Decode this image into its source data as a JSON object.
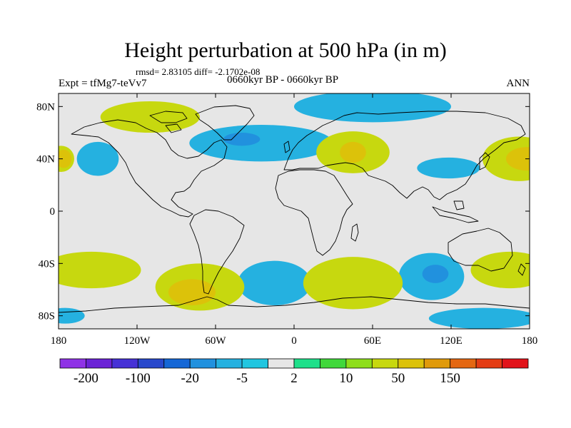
{
  "title": "Height perturbation at 500 hPa (in m)",
  "stats": "rmsd= 2.83105 diff= -2.1702e-08",
  "experiment": "Expt = tfMg7-teVv7",
  "period": "0660kyr BP - 0660kyr BP",
  "season": "ANN",
  "map": {
    "lon_range": [
      -180,
      180
    ],
    "lat_range": [
      -90,
      90
    ],
    "background_color": "#e6e6e6",
    "lat_ticks": [
      {
        "value": 80,
        "label": "80N"
      },
      {
        "value": 40,
        "label": "40N"
      },
      {
        "value": 0,
        "label": "0"
      },
      {
        "value": -40,
        "label": "40S"
      },
      {
        "value": -80,
        "label": "80S"
      }
    ],
    "lon_ticks": [
      {
        "value": -180,
        "label": "180"
      },
      {
        "value": -120,
        "label": "120W"
      },
      {
        "value": -60,
        "label": "60W"
      },
      {
        "value": 0,
        "label": "0"
      },
      {
        "value": 60,
        "label": "60E"
      },
      {
        "value": 120,
        "label": "120E"
      },
      {
        "value": 180,
        "label": "180"
      }
    ],
    "field_anomalies": [
      {
        "lon": -110,
        "lat": 72,
        "rlon": 38,
        "rlat": 12,
        "level": 4
      },
      {
        "lon": -25,
        "lat": 52,
        "rlon": 55,
        "rlat": 14,
        "level": -2
      },
      {
        "lon": -40,
        "lat": 55,
        "rlon": 14,
        "rlat": 5,
        "level": -3
      },
      {
        "lon": -150,
        "lat": 40,
        "rlon": 16,
        "rlat": 13,
        "level": -2
      },
      {
        "lon": 60,
        "lat": 80,
        "rlon": 60,
        "rlat": 12,
        "level": -2
      },
      {
        "lon": 45,
        "lat": 45,
        "rlon": 28,
        "rlat": 16,
        "level": 4
      },
      {
        "lon": 45,
        "lat": 45,
        "rlon": 10,
        "rlat": 8,
        "level": 5
      },
      {
        "lon": 118,
        "lat": 33,
        "rlon": 24,
        "rlat": 8,
        "level": -2
      },
      {
        "lon": 172,
        "lat": 40,
        "rlon": 28,
        "rlat": 17,
        "level": 4
      },
      {
        "lon": 178,
        "lat": 40,
        "rlon": 16,
        "rlat": 9,
        "level": 5
      },
      {
        "lon": -178,
        "lat": 40,
        "rlon": 10,
        "rlat": 10,
        "level": 4
      },
      {
        "lon": -176,
        "lat": 40,
        "rlon": 6,
        "rlat": 7,
        "level": 5
      },
      {
        "lon": -155,
        "lat": -45,
        "rlon": 38,
        "rlat": 14,
        "level": 4
      },
      {
        "lon": -72,
        "lat": -58,
        "rlon": 34,
        "rlat": 18,
        "level": 4
      },
      {
        "lon": -78,
        "lat": -62,
        "rlon": 18,
        "rlat": 10,
        "level": 5
      },
      {
        "lon": -15,
        "lat": -55,
        "rlon": 28,
        "rlat": 17,
        "level": -2
      },
      {
        "lon": 45,
        "lat": -55,
        "rlon": 38,
        "rlat": 20,
        "level": 4
      },
      {
        "lon": 105,
        "lat": -50,
        "rlon": 25,
        "rlat": 18,
        "level": -2
      },
      {
        "lon": 108,
        "lat": -48,
        "rlon": 10,
        "rlat": 7,
        "level": -3
      },
      {
        "lon": 165,
        "lat": -45,
        "rlon": 30,
        "rlat": 14,
        "level": 4
      },
      {
        "lon": 145,
        "lat": -82,
        "rlon": 42,
        "rlat": 8,
        "level": -2
      },
      {
        "lon": -175,
        "lat": -80,
        "rlon": 15,
        "rlat": 6,
        "level": -2
      }
    ]
  },
  "colorbar": {
    "colors": [
      "#8f32e6",
      "#6b22d6",
      "#4631d6",
      "#2848cc",
      "#1567d6",
      "#2191de",
      "#25b1e0",
      "#21c6e0",
      "#e6e6e6",
      "#1ee08a",
      "#40d83b",
      "#8ede1a",
      "#c7d80f",
      "#dcc20a",
      "#e09a0a",
      "#e46712",
      "#e43c14",
      "#e2131a"
    ],
    "labels": [
      {
        "text": "-200",
        "after_box": 1
      },
      {
        "text": "-100",
        "after_box": 3
      },
      {
        "text": "-20",
        "after_box": 5
      },
      {
        "text": "-5",
        "after_box": 7
      },
      {
        "text": "2",
        "after_box": 9
      },
      {
        "text": "10",
        "after_box": 11
      },
      {
        "text": "50",
        "after_box": 13
      },
      {
        "text": "150",
        "after_box": 15
      }
    ]
  }
}
